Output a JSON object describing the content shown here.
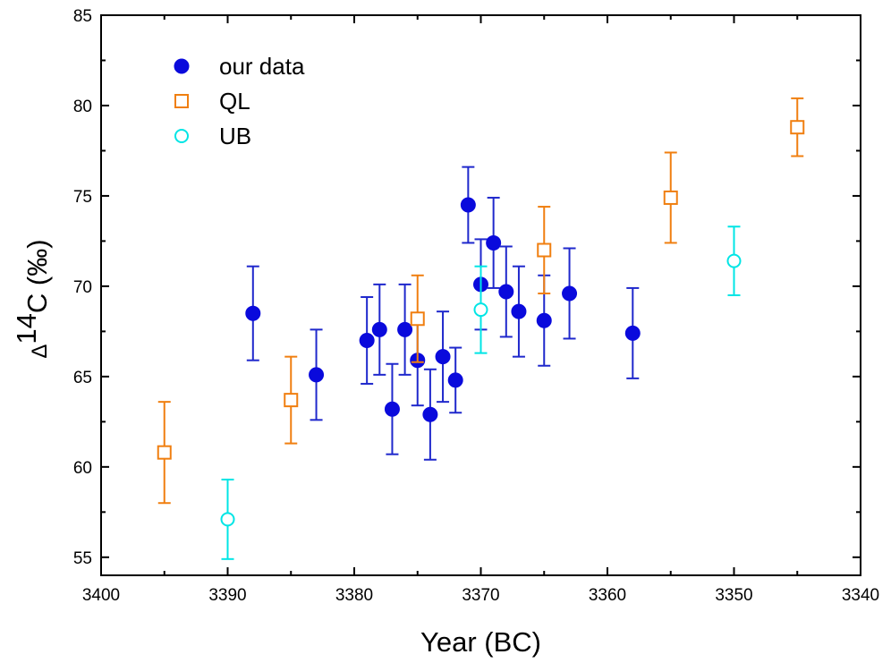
{
  "chart_data": {
    "type": "scatter",
    "xlabel": "Year (BC)",
    "ylabel": "Δ¹⁴C (‰)",
    "ylabel_parts": {
      "delta": "Δ",
      "superscript": "14",
      "main": "C (‰)"
    },
    "x_reversed": true,
    "xlim": [
      3400,
      3340
    ],
    "ylim": [
      54,
      85
    ],
    "xticks": [
      3400,
      3390,
      3380,
      3370,
      3360,
      3350,
      3340
    ],
    "yticks": [
      55,
      60,
      65,
      70,
      75,
      80,
      85
    ],
    "grid": false,
    "legend": {
      "position": "top-left"
    },
    "series": [
      {
        "name": "our data",
        "marker": "filled-circle",
        "color": "#0a0adc",
        "errorbar_color": "#1f28cc",
        "points": [
          {
            "x": 3388,
            "y": 68.5,
            "err": 2.6
          },
          {
            "x": 3383,
            "y": 65.1,
            "err": 2.5
          },
          {
            "x": 3379,
            "y": 67.0,
            "err": 2.4
          },
          {
            "x": 3378,
            "y": 67.6,
            "err": 2.5
          },
          {
            "x": 3377,
            "y": 63.2,
            "err": 2.5
          },
          {
            "x": 3376,
            "y": 67.6,
            "err": 2.5
          },
          {
            "x": 3375,
            "y": 65.9,
            "err": 2.5
          },
          {
            "x": 3374,
            "y": 62.9,
            "err": 2.5
          },
          {
            "x": 3373,
            "y": 66.1,
            "err": 2.5
          },
          {
            "x": 3372,
            "y": 64.8,
            "err": 1.8
          },
          {
            "x": 3371,
            "y": 74.5,
            "err": 2.1
          },
          {
            "x": 3370,
            "y": 70.1,
            "err": 2.5
          },
          {
            "x": 3369,
            "y": 72.4,
            "err": 2.5
          },
          {
            "x": 3368,
            "y": 69.7,
            "err": 2.5
          },
          {
            "x": 3367,
            "y": 68.6,
            "err": 2.5
          },
          {
            "x": 3365,
            "y": 68.1,
            "err": 2.5
          },
          {
            "x": 3363,
            "y": 69.6,
            "err": 2.5
          },
          {
            "x": 3358,
            "y": 67.4,
            "err": 2.5
          }
        ]
      },
      {
        "name": "QL",
        "marker": "open-square",
        "color": "#f07f10",
        "points": [
          {
            "x": 3395,
            "y": 60.8,
            "err": 2.8
          },
          {
            "x": 3385,
            "y": 63.7,
            "err": 2.4
          },
          {
            "x": 3375,
            "y": 68.2,
            "err": 2.4
          },
          {
            "x": 3365,
            "y": 72.0,
            "err": 2.4
          },
          {
            "x": 3355,
            "y": 74.9,
            "err": 2.5
          },
          {
            "x": 3345,
            "y": 78.8,
            "err": 1.6
          }
        ]
      },
      {
        "name": "UB",
        "marker": "open-circle",
        "color": "#00e5e5",
        "points": [
          {
            "x": 3390,
            "y": 57.1,
            "err": 2.2
          },
          {
            "x": 3370,
            "y": 68.7,
            "err": 2.4
          },
          {
            "x": 3350,
            "y": 71.4,
            "err": 1.9
          }
        ]
      }
    ]
  }
}
